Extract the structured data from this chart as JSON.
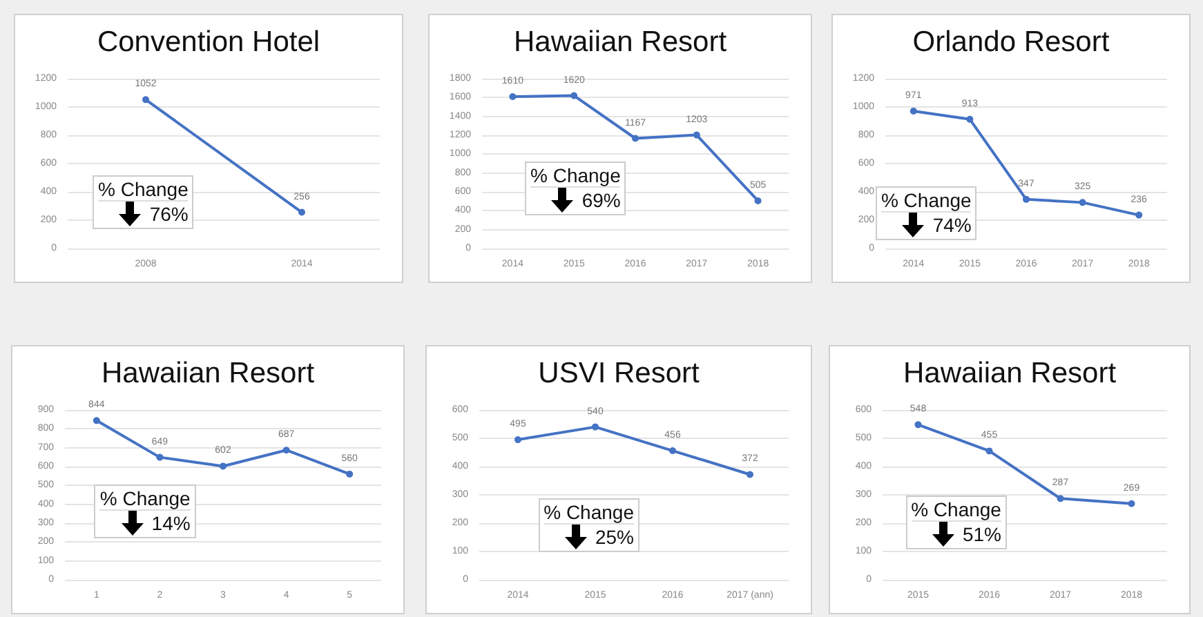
{
  "chart_data": [
    {
      "type": "line",
      "title": "Convention Hotel",
      "categories": [
        "2008",
        "2014"
      ],
      "values": [
        1052,
        256
      ],
      "color": "#4472c4",
      "ylim": [
        0,
        1200
      ],
      "yticks": [
        0,
        200,
        400,
        600,
        800,
        1000,
        1200
      ],
      "grid": "y",
      "marker": "circle",
      "data_labels": true,
      "annotations": [
        "% Change",
        "76%"
      ]
    },
    {
      "type": "line",
      "title": "Hawaiian Resort",
      "categories": [
        "2014",
        "2015",
        "2016",
        "2017",
        "2018"
      ],
      "values": [
        1610,
        1620,
        1167,
        1203,
        505
      ],
      "value_labels": [
        "1610",
        "1620",
        "1167",
        "1203",
        "505"
      ],
      "color": "#4472c4",
      "ylim": [
        0,
        1800
      ],
      "yticks": [
        0,
        200,
        400,
        600,
        800,
        1000,
        1200,
        1400,
        1600,
        1800
      ],
      "grid": "y",
      "marker": "circle",
      "annotations": [
        "% Change",
        "69%"
      ]
    },
    {
      "type": "line",
      "title": "Orlando Resort",
      "categories": [
        "2014",
        "2015",
        "2016",
        "2017",
        "2018"
      ],
      "values": [
        971,
        913,
        347,
        325,
        236
      ],
      "color": "#4472c4",
      "ylim": [
        0,
        1200
      ],
      "yticks": [
        0,
        200,
        400,
        600,
        800,
        1000,
        1200
      ],
      "grid": "y",
      "marker": "circle",
      "data_labels": true,
      "annotations": [
        "% Change",
        "74%"
      ]
    },
    {
      "type": "line",
      "title": "Hawaiian Resort",
      "categories": [
        "1",
        "2",
        "3",
        "4",
        "5"
      ],
      "values": [
        844,
        649,
        602,
        687,
        560
      ],
      "color": "#4472c4",
      "ylim": [
        0,
        900
      ],
      "yticks": [
        0,
        100,
        200,
        300,
        400,
        500,
        600,
        700,
        800,
        900
      ],
      "grid": "y",
      "marker": "circle",
      "data_labels": true,
      "annotations": [
        "% Change",
        "14%"
      ]
    },
    {
      "type": "line",
      "title": "USVI Resort",
      "categories": [
        "2014",
        "2015",
        "2016",
        "2017 (ann)"
      ],
      "values": [
        495,
        540,
        456,
        372
      ],
      "color": "#4472c4",
      "ylim": [
        0,
        600
      ],
      "yticks": [
        0,
        100,
        200,
        300,
        400,
        500,
        600
      ],
      "grid": "y",
      "marker": "circle",
      "data_labels": true,
      "annotations": [
        "% Change",
        "25%"
      ]
    },
    {
      "type": "line",
      "title": "Hawaiian Resort",
      "categories": [
        "2015",
        "2016",
        "2017",
        "2018"
      ],
      "values": [
        548,
        455,
        287,
        269
      ],
      "color": "#4472c4",
      "ylim": [
        0,
        600
      ],
      "yticks": [
        0,
        100,
        200,
        300,
        400,
        500,
        600
      ],
      "grid": "y",
      "marker": "circle",
      "data_labels": true,
      "annotations": [
        "% Change",
        "51%"
      ]
    }
  ]
}
